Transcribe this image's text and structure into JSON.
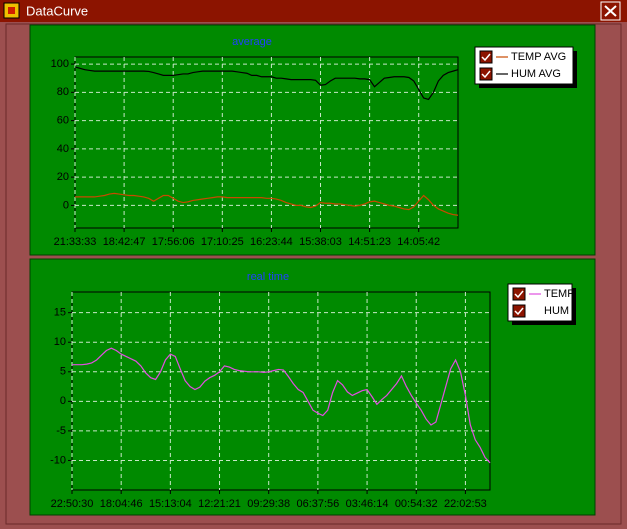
{
  "window": {
    "title": "DataCurve"
  },
  "chart_data": [
    {
      "type": "line",
      "title": "average",
      "series": [
        {
          "name": "TEMP AVG",
          "color": "#c84a00",
          "values": [
            6,
            6,
            6,
            6,
            6,
            6.5,
            7,
            8,
            8.5,
            8,
            7.5,
            7,
            7,
            6.5,
            6,
            5,
            3,
            5,
            7,
            7,
            5,
            3,
            2,
            2.5,
            3.5,
            4,
            4.5,
            5,
            5.5,
            6,
            6,
            5.5,
            5.5,
            5.5,
            5.5,
            5.5,
            5.5,
            5.5,
            5.5,
            5,
            5,
            4.5,
            3.5,
            2,
            1,
            0,
            0,
            -1,
            -1.5,
            -0.5,
            2,
            1.5,
            1.5,
            1,
            1,
            0.5,
            0,
            -0.5,
            0,
            1,
            2.5,
            3,
            2,
            1,
            0,
            -0.5,
            -1.5,
            -2.5,
            -3,
            -1,
            3,
            7,
            4,
            0,
            -2.5,
            -4,
            -5.5,
            -6.5,
            -7
          ]
        },
        {
          "name": "HUM AVG",
          "color": "#000000",
          "values": [
            98,
            97,
            96,
            95.5,
            95,
            95,
            95,
            95,
            95,
            95,
            95,
            95,
            95,
            95,
            95,
            94.8,
            94,
            93,
            92,
            92,
            92,
            92.5,
            93,
            93,
            94,
            94.5,
            95,
            95,
            95,
            95,
            95,
            95,
            95,
            94.5,
            94,
            93.5,
            92,
            92,
            91,
            91,
            91,
            90,
            90,
            89.5,
            89,
            89,
            89,
            89,
            89,
            88.5,
            85,
            85.5,
            88,
            90,
            90,
            90,
            90,
            90,
            89.5,
            89.5,
            89,
            84,
            87,
            90,
            90.5,
            91,
            91,
            91,
            90.5,
            88,
            82,
            76,
            75,
            80,
            88,
            92,
            94,
            95,
            96
          ]
        }
      ],
      "xlim": [
        0,
        78
      ],
      "xticks": [
        {
          "value": 0,
          "label": "21:33:33"
        },
        {
          "value": 10,
          "label": "18:42:47"
        },
        {
          "value": 20,
          "label": "17:56:06"
        },
        {
          "value": 30,
          "label": "17:10:25"
        },
        {
          "value": 40,
          "label": "16:23:44"
        },
        {
          "value": 50,
          "label": "15:38:03"
        },
        {
          "value": 60,
          "label": "14:51:23"
        },
        {
          "value": 70,
          "label": "14:05:42"
        }
      ],
      "ylim": [
        -16,
        105
      ],
      "yticks": [
        0,
        20,
        40,
        60,
        80,
        100
      ],
      "grid": true,
      "legend": "outside-right"
    },
    {
      "type": "line",
      "title": "real time",
      "series": [
        {
          "name": "TEMP",
          "color": "#e050e0",
          "values": [
            6.2,
            6.2,
            6.2,
            6.3,
            6.5,
            7,
            7.8,
            8.6,
            9,
            8.6,
            8,
            7.6,
            7.2,
            6.8,
            6,
            4.8,
            4,
            3.7,
            5,
            7,
            8,
            7.6,
            5.5,
            3.5,
            2.5,
            2,
            2.4,
            3.4,
            4,
            4.4,
            5,
            6,
            5.8,
            5.4,
            5.2,
            5.1,
            5,
            5,
            5,
            4.9,
            5,
            5.2,
            5.4,
            5.3,
            4.2,
            3,
            2,
            1.5,
            0,
            -1.5,
            -2,
            -2.4,
            -1.5,
            1.5,
            3.5,
            2.8,
            1.6,
            1,
            1.4,
            1.8,
            2,
            0.8,
            -0.5,
            0.3,
            1,
            2,
            3,
            4.3,
            2.5,
            1,
            -0.3,
            -1.5,
            -3,
            -4,
            -3.5,
            -0.5,
            2.5,
            5.5,
            7,
            5,
            1,
            -4,
            -6.5,
            -7.8,
            -9.5,
            -10.4
          ]
        },
        {
          "name": "HUM",
          "values": []
        }
      ],
      "xlim": [
        0,
        85
      ],
      "xticks": [
        {
          "value": 0,
          "label": "22:50:30"
        },
        {
          "value": 10,
          "label": "18:04:46"
        },
        {
          "value": 20,
          "label": "15:13:04"
        },
        {
          "value": 30,
          "label": "12:21:21"
        },
        {
          "value": 40,
          "label": "09:29:38"
        },
        {
          "value": 50,
          "label": "06:37:56"
        },
        {
          "value": 60,
          "label": "03:46:14"
        },
        {
          "value": 70,
          "label": "00:54:32"
        },
        {
          "value": 80,
          "label": "22:02:53"
        }
      ],
      "ylim": [
        -15,
        18.5
      ],
      "yticks": [
        -10,
        -5,
        0,
        5,
        10,
        15
      ],
      "grid": true,
      "legend": "outside-right"
    }
  ]
}
